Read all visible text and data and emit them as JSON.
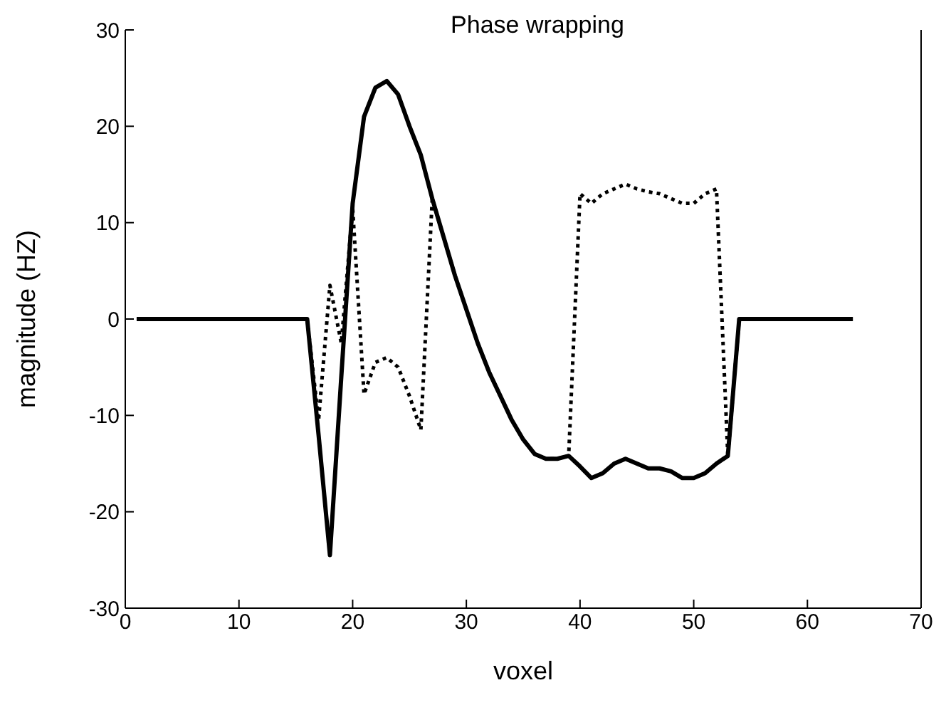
{
  "chart_data": {
    "type": "line",
    "title": "Phase wrapping",
    "xlabel": "voxel",
    "ylabel": "magnitude (HZ)",
    "x": [
      1,
      2,
      3,
      4,
      5,
      6,
      7,
      8,
      9,
      10,
      11,
      12,
      13,
      14,
      15,
      16,
      17,
      18,
      19,
      20,
      21,
      22,
      23,
      24,
      25,
      26,
      27,
      28,
      29,
      30,
      31,
      32,
      33,
      34,
      35,
      36,
      37,
      38,
      39,
      40,
      41,
      42,
      43,
      44,
      45,
      46,
      47,
      48,
      49,
      50,
      51,
      52,
      53,
      54,
      55,
      56,
      57,
      58,
      59,
      60,
      61,
      62,
      63,
      64
    ],
    "series": [
      {
        "color": "#000000",
        "line_style": "dotted",
        "values": [
          0,
          0,
          0,
          0,
          0,
          0,
          0,
          0,
          0,
          0,
          0,
          0,
          0,
          0,
          0,
          0,
          -10.5,
          3.5,
          -2.5,
          11.5,
          -7.8,
          -4.5,
          -4,
          -5,
          -8,
          -11.5,
          12.5,
          8.5,
          4.5,
          1,
          -2.5,
          -5.5,
          -8,
          -10.5,
          -12.5,
          -14,
          -14.5,
          -14.5,
          -14.2,
          13,
          12,
          13,
          13.5,
          14,
          13.5,
          13.2,
          13,
          12.5,
          12,
          12,
          13,
          13.5,
          -14.2,
          0,
          0,
          0,
          0,
          0,
          0,
          0,
          0,
          0,
          0,
          0
        ]
      },
      {
        "color": "#000000",
        "line_style": "solid",
        "values": [
          0,
          0,
          0,
          0,
          0,
          0,
          0,
          0,
          0,
          0,
          0,
          0,
          0,
          0,
          0,
          0,
          -12,
          -24.5,
          -6,
          12,
          21,
          24,
          24.7,
          23.3,
          20,
          17,
          12.5,
          8.5,
          4.5,
          1,
          -2.5,
          -5.5,
          -8,
          -10.5,
          -12.5,
          -14,
          -14.5,
          -14.5,
          -14.2,
          -15.3,
          -16.5,
          -16,
          -15,
          -14.5,
          -15,
          -15.5,
          -15.5,
          -15.8,
          -16.5,
          -16.5,
          -16,
          -15,
          -14.2,
          0,
          0,
          0,
          0,
          0,
          0,
          0,
          0,
          0,
          0,
          0
        ]
      }
    ],
    "xlim": [
      0,
      70
    ],
    "xticks": [
      0,
      10,
      20,
      30,
      40,
      50,
      60,
      70
    ],
    "ylim": [
      -30,
      30
    ],
    "yticks": [
      -30,
      -20,
      -10,
      0,
      10,
      20,
      30
    ],
    "grid": false,
    "marker": "none"
  }
}
